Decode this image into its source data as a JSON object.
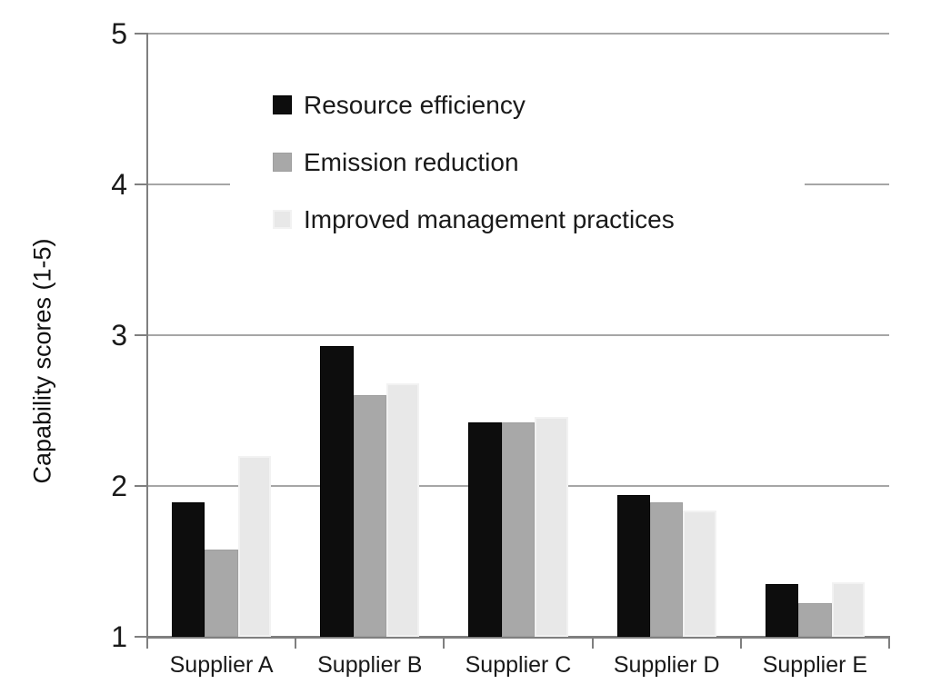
{
  "chart_data": {
    "type": "bar",
    "title": "",
    "xlabel": "",
    "ylabel": "Capability scores (1-5)",
    "ylim": [
      1,
      5
    ],
    "yticks": [
      1,
      2,
      3,
      4,
      5
    ],
    "grid": true,
    "legend_position": "inside-top-center",
    "categories": [
      "Supplier A",
      "Supplier B",
      "Supplier C",
      "Supplier D",
      "Supplier E"
    ],
    "series": [
      {
        "name": "Resource efficiency",
        "color": "#0d0d0d",
        "values": [
          1.89,
          2.93,
          2.42,
          1.94,
          1.35
        ]
      },
      {
        "name": "Emission reduction",
        "color": "#a8a8a8",
        "values": [
          1.58,
          2.6,
          2.42,
          1.89,
          1.22
        ]
      },
      {
        "name": "Improved management practices",
        "color": "#e8e8e8",
        "values": [
          2.2,
          2.68,
          2.46,
          1.84,
          1.36
        ]
      }
    ]
  },
  "colors": {
    "background": "#ffffff",
    "gridline": "#a6a6a6",
    "axis": "#7f7f7f",
    "text": "#1a1a1a"
  }
}
